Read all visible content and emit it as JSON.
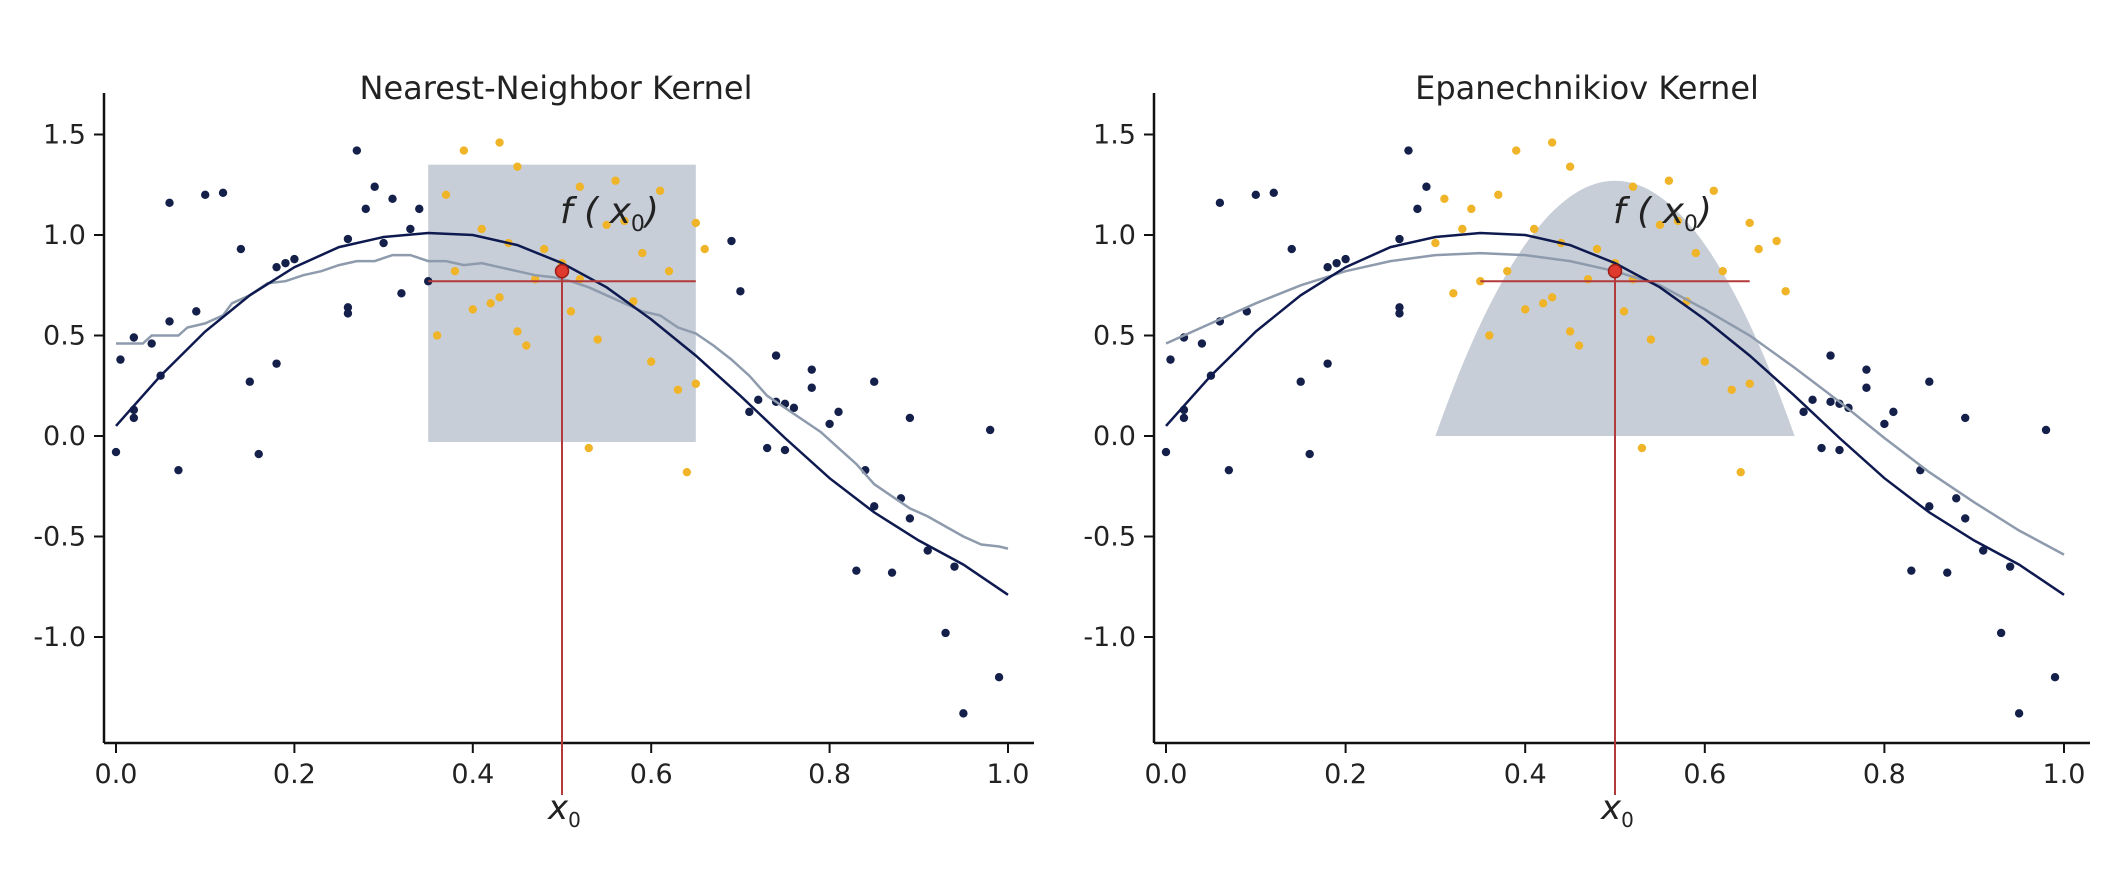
{
  "colors": {
    "background": "#ffffff",
    "axis": "#111111",
    "points_outside": "#14204a",
    "points_inside": "#f0b429",
    "true_curve": "#0e1a4f",
    "fit_curve": "#8e9bad",
    "kernel_region": "#c7ced8",
    "marker_lines": "#b33a3a",
    "marker_point": "#e03a2f"
  },
  "chart_data": [
    {
      "type": "scatter",
      "title": "Nearest-Neighbor Kernel",
      "xlim": [
        0.0,
        1.0
      ],
      "ylim": [
        -1.5,
        1.7
      ],
      "xticks": [
        "0.0",
        "0.2",
        "0.4",
        "0.6",
        "0.8",
        "1.0"
      ],
      "yticks": [
        "1.5",
        "1.0",
        "0.5",
        "0.0",
        "-0.5",
        "-1.0"
      ],
      "x0_label": "x",
      "x0_subscript": "0",
      "fx0_label": "f ( x",
      "fx0_subscript": "0",
      "fx0_close": ")",
      "target": {
        "x": 0.5,
        "y": 0.82
      },
      "kernel": {
        "shape": "box",
        "x_from": 0.35,
        "x_to": 0.65,
        "y_from": -0.03,
        "y_to": 1.35
      },
      "estimate_line": {
        "x_from": 0.35,
        "x_to": 0.65,
        "y": 0.77
      },
      "points_outside": [
        [
          0.0,
          -0.08
        ],
        [
          0.005,
          0.38
        ],
        [
          0.02,
          0.13
        ],
        [
          0.02,
          0.09
        ],
        [
          0.02,
          0.49
        ],
        [
          0.04,
          0.46
        ],
        [
          0.05,
          0.3
        ],
        [
          0.06,
          1.16
        ],
        [
          0.06,
          0.57
        ],
        [
          0.07,
          -0.17
        ],
        [
          0.09,
          0.62
        ],
        [
          0.1,
          1.2
        ],
        [
          0.12,
          1.21
        ],
        [
          0.14,
          0.93
        ],
        [
          0.15,
          0.27
        ],
        [
          0.16,
          -0.09
        ],
        [
          0.18,
          0.36
        ],
        [
          0.18,
          0.84
        ],
        [
          0.19,
          0.86
        ],
        [
          0.2,
          0.88
        ],
        [
          0.26,
          0.61
        ],
        [
          0.26,
          0.98
        ],
        [
          0.26,
          0.64
        ],
        [
          0.27,
          1.42
        ],
        [
          0.28,
          1.13
        ],
        [
          0.29,
          1.24
        ],
        [
          0.3,
          0.96
        ],
        [
          0.31,
          1.18
        ],
        [
          0.32,
          0.71
        ],
        [
          0.33,
          1.03
        ],
        [
          0.34,
          1.13
        ],
        [
          0.35,
          0.77
        ],
        [
          0.69,
          0.97
        ],
        [
          0.7,
          0.72
        ],
        [
          0.71,
          0.12
        ],
        [
          0.72,
          0.18
        ],
        [
          0.73,
          -0.06
        ],
        [
          0.74,
          0.4
        ],
        [
          0.74,
          0.17
        ],
        [
          0.75,
          0.16
        ],
        [
          0.75,
          -0.07
        ],
        [
          0.76,
          0.14
        ],
        [
          0.78,
          0.33
        ],
        [
          0.78,
          0.24
        ],
        [
          0.8,
          0.06
        ],
        [
          0.81,
          0.12
        ],
        [
          0.83,
          -0.67
        ],
        [
          0.84,
          -0.17
        ],
        [
          0.85,
          0.27
        ],
        [
          0.85,
          -0.35
        ],
        [
          0.87,
          -0.68
        ],
        [
          0.88,
          -0.31
        ],
        [
          0.89,
          0.09
        ],
        [
          0.89,
          -0.41
        ],
        [
          0.91,
          -0.57
        ],
        [
          0.93,
          -0.98
        ],
        [
          0.94,
          -0.65
        ],
        [
          0.95,
          -1.38
        ],
        [
          0.98,
          0.03
        ],
        [
          0.99,
          -1.2
        ]
      ],
      "points_inside": [
        [
          0.36,
          0.5
        ],
        [
          0.37,
          1.2
        ],
        [
          0.38,
          0.82
        ],
        [
          0.39,
          1.42
        ],
        [
          0.4,
          0.63
        ],
        [
          0.41,
          1.03
        ],
        [
          0.42,
          0.66
        ],
        [
          0.43,
          1.46
        ],
        [
          0.43,
          0.69
        ],
        [
          0.44,
          0.96
        ],
        [
          0.45,
          1.34
        ],
        [
          0.45,
          0.52
        ],
        [
          0.46,
          0.45
        ],
        [
          0.47,
          0.78
        ],
        [
          0.48,
          0.93
        ],
        [
          0.5,
          0.86
        ],
        [
          0.51,
          0.62
        ],
        [
          0.52,
          1.24
        ],
        [
          0.52,
          0.78
        ],
        [
          0.53,
          -0.06
        ],
        [
          0.54,
          0.48
        ],
        [
          0.55,
          1.05
        ],
        [
          0.56,
          1.27
        ],
        [
          0.57,
          1.07
        ],
        [
          0.58,
          0.67
        ],
        [
          0.59,
          0.91
        ],
        [
          0.6,
          0.37
        ],
        [
          0.61,
          1.22
        ],
        [
          0.62,
          0.82
        ],
        [
          0.63,
          0.23
        ],
        [
          0.64,
          -0.18
        ],
        [
          0.65,
          1.06
        ],
        [
          0.65,
          0.26
        ],
        [
          0.66,
          0.93
        ]
      ],
      "true_curve": [
        [
          0.0,
          0.05
        ],
        [
          0.05,
          0.3
        ],
        [
          0.1,
          0.52
        ],
        [
          0.15,
          0.7
        ],
        [
          0.2,
          0.84
        ],
        [
          0.25,
          0.94
        ],
        [
          0.3,
          0.99
        ],
        [
          0.35,
          1.01
        ],
        [
          0.4,
          1.0
        ],
        [
          0.45,
          0.95
        ],
        [
          0.5,
          0.86
        ],
        [
          0.55,
          0.74
        ],
        [
          0.6,
          0.58
        ],
        [
          0.65,
          0.4
        ],
        [
          0.7,
          0.2
        ],
        [
          0.75,
          -0.01
        ],
        [
          0.8,
          -0.21
        ],
        [
          0.85,
          -0.38
        ],
        [
          0.9,
          -0.52
        ],
        [
          0.95,
          -0.64
        ],
        [
          1.0,
          -0.79
        ]
      ],
      "fit_curve": [
        [
          0.0,
          0.46
        ],
        [
          0.03,
          0.46
        ],
        [
          0.04,
          0.5
        ],
        [
          0.07,
          0.5
        ],
        [
          0.08,
          0.54
        ],
        [
          0.1,
          0.56
        ],
        [
          0.12,
          0.6
        ],
        [
          0.13,
          0.66
        ],
        [
          0.15,
          0.7
        ],
        [
          0.17,
          0.76
        ],
        [
          0.19,
          0.77
        ],
        [
          0.21,
          0.8
        ],
        [
          0.23,
          0.82
        ],
        [
          0.25,
          0.85
        ],
        [
          0.27,
          0.87
        ],
        [
          0.29,
          0.87
        ],
        [
          0.31,
          0.9
        ],
        [
          0.33,
          0.9
        ],
        [
          0.35,
          0.87
        ],
        [
          0.37,
          0.87
        ],
        [
          0.39,
          0.85
        ],
        [
          0.41,
          0.86
        ],
        [
          0.43,
          0.84
        ],
        [
          0.45,
          0.82
        ],
        [
          0.47,
          0.8
        ],
        [
          0.49,
          0.79
        ],
        [
          0.51,
          0.77
        ],
        [
          0.53,
          0.74
        ],
        [
          0.55,
          0.7
        ],
        [
          0.57,
          0.66
        ],
        [
          0.59,
          0.62
        ],
        [
          0.61,
          0.6
        ],
        [
          0.63,
          0.54
        ],
        [
          0.65,
          0.51
        ],
        [
          0.67,
          0.45
        ],
        [
          0.69,
          0.38
        ],
        [
          0.71,
          0.3
        ],
        [
          0.73,
          0.2
        ],
        [
          0.75,
          0.14
        ],
        [
          0.77,
          0.08
        ],
        [
          0.79,
          0.02
        ],
        [
          0.81,
          -0.06
        ],
        [
          0.83,
          -0.14
        ],
        [
          0.85,
          -0.24
        ],
        [
          0.87,
          -0.3
        ],
        [
          0.89,
          -0.36
        ],
        [
          0.91,
          -0.4
        ],
        [
          0.93,
          -0.45
        ],
        [
          0.95,
          -0.5
        ],
        [
          0.97,
          -0.54
        ],
        [
          0.99,
          -0.55
        ],
        [
          1.0,
          -0.56
        ]
      ]
    },
    {
      "type": "scatter",
      "title": "Epanechnikiov Kernel",
      "xlim": [
        0.0,
        1.0
      ],
      "ylim": [
        -1.5,
        1.7
      ],
      "xticks": [
        "0.0",
        "0.2",
        "0.4",
        "0.6",
        "0.8",
        "1.0"
      ],
      "yticks": [
        "1.5",
        "1.0",
        "0.5",
        "0.0",
        "-0.5",
        "-1.0"
      ],
      "x0_label": "x",
      "x0_subscript": "0",
      "fx0_label": "f ( x",
      "fx0_subscript": "0",
      "fx0_close": ")",
      "target": {
        "x": 0.5,
        "y": 0.82
      },
      "kernel": {
        "shape": "parabola",
        "x_from": 0.3,
        "x_to": 0.7,
        "peak_x": 0.5,
        "peak_y": 1.27
      },
      "estimate_line": {
        "x_from": 0.35,
        "x_to": 0.65,
        "y": 0.77
      },
      "points_outside": [
        [
          0.0,
          -0.08
        ],
        [
          0.005,
          0.38
        ],
        [
          0.02,
          0.13
        ],
        [
          0.02,
          0.09
        ],
        [
          0.02,
          0.49
        ],
        [
          0.04,
          0.46
        ],
        [
          0.05,
          0.3
        ],
        [
          0.06,
          1.16
        ],
        [
          0.06,
          0.57
        ],
        [
          0.07,
          -0.17
        ],
        [
          0.09,
          0.62
        ],
        [
          0.1,
          1.2
        ],
        [
          0.12,
          1.21
        ],
        [
          0.14,
          0.93
        ],
        [
          0.15,
          0.27
        ],
        [
          0.16,
          -0.09
        ],
        [
          0.18,
          0.36
        ],
        [
          0.18,
          0.84
        ],
        [
          0.19,
          0.86
        ],
        [
          0.2,
          0.88
        ],
        [
          0.26,
          0.61
        ],
        [
          0.26,
          0.98
        ],
        [
          0.26,
          0.64
        ],
        [
          0.27,
          1.42
        ],
        [
          0.28,
          1.13
        ],
        [
          0.29,
          1.24
        ],
        [
          0.71,
          0.12
        ],
        [
          0.72,
          0.18
        ],
        [
          0.73,
          -0.06
        ],
        [
          0.74,
          0.4
        ],
        [
          0.74,
          0.17
        ],
        [
          0.75,
          0.16
        ],
        [
          0.75,
          -0.07
        ],
        [
          0.76,
          0.14
        ],
        [
          0.78,
          0.33
        ],
        [
          0.78,
          0.24
        ],
        [
          0.8,
          0.06
        ],
        [
          0.81,
          0.12
        ],
        [
          0.83,
          -0.67
        ],
        [
          0.84,
          -0.17
        ],
        [
          0.85,
          0.27
        ],
        [
          0.85,
          -0.35
        ],
        [
          0.87,
          -0.68
        ],
        [
          0.88,
          -0.31
        ],
        [
          0.89,
          0.09
        ],
        [
          0.89,
          -0.41
        ],
        [
          0.91,
          -0.57
        ],
        [
          0.93,
          -0.98
        ],
        [
          0.94,
          -0.65
        ],
        [
          0.95,
          -1.38
        ],
        [
          0.98,
          0.03
        ],
        [
          0.99,
          -1.2
        ]
      ],
      "points_inside": [
        [
          0.3,
          0.96
        ],
        [
          0.31,
          1.18
        ],
        [
          0.32,
          0.71
        ],
        [
          0.33,
          1.03
        ],
        [
          0.34,
          1.13
        ],
        [
          0.35,
          0.77
        ],
        [
          0.36,
          0.5
        ],
        [
          0.37,
          1.2
        ],
        [
          0.38,
          0.82
        ],
        [
          0.39,
          1.42
        ],
        [
          0.4,
          0.63
        ],
        [
          0.41,
          1.03
        ],
        [
          0.42,
          0.66
        ],
        [
          0.43,
          1.46
        ],
        [
          0.43,
          0.69
        ],
        [
          0.44,
          0.96
        ],
        [
          0.45,
          1.34
        ],
        [
          0.45,
          0.52
        ],
        [
          0.46,
          0.45
        ],
        [
          0.47,
          0.78
        ],
        [
          0.48,
          0.93
        ],
        [
          0.5,
          0.86
        ],
        [
          0.51,
          0.62
        ],
        [
          0.52,
          1.24
        ],
        [
          0.52,
          0.78
        ],
        [
          0.53,
          -0.06
        ],
        [
          0.54,
          0.48
        ],
        [
          0.55,
          1.05
        ],
        [
          0.56,
          1.27
        ],
        [
          0.57,
          1.07
        ],
        [
          0.58,
          0.67
        ],
        [
          0.59,
          0.91
        ],
        [
          0.6,
          0.37
        ],
        [
          0.61,
          1.22
        ],
        [
          0.62,
          0.82
        ],
        [
          0.63,
          0.23
        ],
        [
          0.64,
          -0.18
        ],
        [
          0.65,
          1.06
        ],
        [
          0.65,
          0.26
        ],
        [
          0.66,
          0.93
        ],
        [
          0.68,
          0.97
        ],
        [
          0.69,
          0.72
        ]
      ],
      "true_curve": [
        [
          0.0,
          0.05
        ],
        [
          0.05,
          0.3
        ],
        [
          0.1,
          0.52
        ],
        [
          0.15,
          0.7
        ],
        [
          0.2,
          0.84
        ],
        [
          0.25,
          0.94
        ],
        [
          0.3,
          0.99
        ],
        [
          0.35,
          1.01
        ],
        [
          0.4,
          1.0
        ],
        [
          0.45,
          0.95
        ],
        [
          0.5,
          0.86
        ],
        [
          0.55,
          0.74
        ],
        [
          0.6,
          0.58
        ],
        [
          0.65,
          0.4
        ],
        [
          0.7,
          0.2
        ],
        [
          0.75,
          -0.01
        ],
        [
          0.8,
          -0.21
        ],
        [
          0.85,
          -0.38
        ],
        [
          0.9,
          -0.52
        ],
        [
          0.95,
          -0.64
        ],
        [
          1.0,
          -0.79
        ]
      ],
      "fit_curve": [
        [
          0.0,
          0.46
        ],
        [
          0.05,
          0.56
        ],
        [
          0.1,
          0.66
        ],
        [
          0.15,
          0.75
        ],
        [
          0.2,
          0.82
        ],
        [
          0.25,
          0.87
        ],
        [
          0.3,
          0.9
        ],
        [
          0.35,
          0.91
        ],
        [
          0.4,
          0.9
        ],
        [
          0.45,
          0.87
        ],
        [
          0.5,
          0.82
        ],
        [
          0.55,
          0.75
        ],
        [
          0.6,
          0.63
        ],
        [
          0.65,
          0.5
        ],
        [
          0.7,
          0.34
        ],
        [
          0.75,
          0.17
        ],
        [
          0.8,
          -0.01
        ],
        [
          0.85,
          -0.18
        ],
        [
          0.9,
          -0.33
        ],
        [
          0.95,
          -0.47
        ],
        [
          1.0,
          -0.59
        ]
      ]
    }
  ]
}
